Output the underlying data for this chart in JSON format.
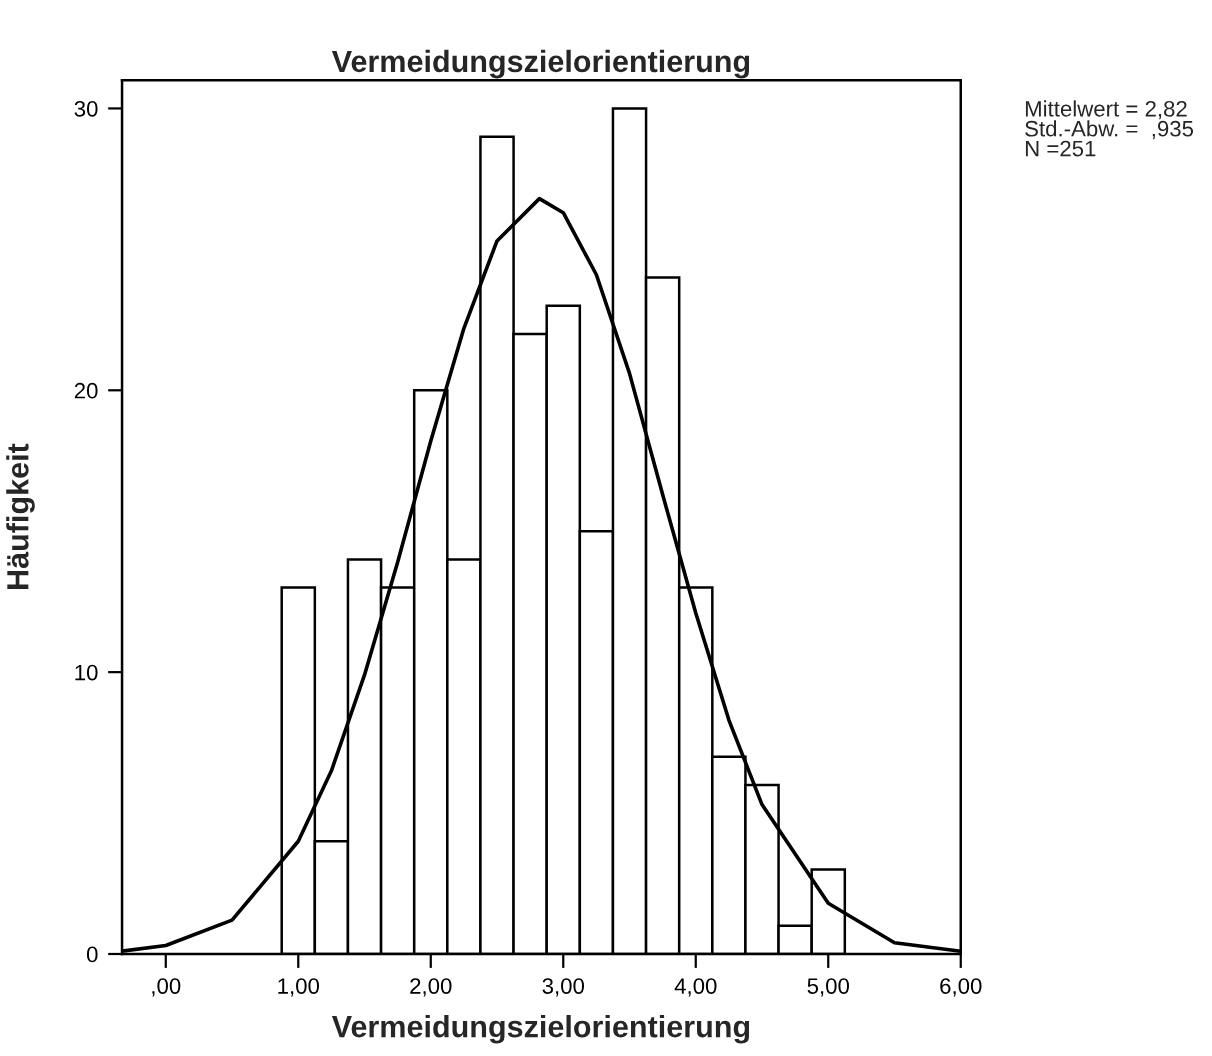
{
  "chart_data": {
    "type": "histogram",
    "title": "Vermeidungszielorientierung",
    "xlabel": "Vermeidungszielorientierung",
    "ylabel": "Häufigkeit",
    "bins": [
      0.875,
      1.125,
      1.375,
      1.625,
      1.875,
      2.125,
      2.375,
      2.625,
      2.875,
      3.125,
      3.375,
      3.625,
      3.875,
      4.125,
      4.375,
      4.625,
      4.875,
      5.125
    ],
    "values": [
      13,
      4,
      14,
      13,
      20,
      14,
      29,
      22,
      23,
      15,
      30,
      24,
      13,
      7,
      6,
      1,
      3
    ],
    "color": "#ffffff",
    "series": [
      {
        "type": "line",
        "color": "#000000",
        "x": [
          -0.33,
          0,
          0.5,
          1.0,
          1.25,
          1.5,
          1.75,
          2.0,
          2.25,
          2.5,
          2.82,
          3.0,
          3.25,
          3.5,
          3.75,
          4.0,
          4.25,
          4.5,
          5.0,
          5.5,
          6.0
        ],
        "values": [
          0.1,
          0.3,
          1.2,
          4.0,
          6.5,
          9.9,
          13.9,
          18.2,
          22.2,
          25.3,
          26.8,
          26.3,
          24.1,
          20.6,
          16.3,
          12.1,
          8.3,
          5.3,
          1.8,
          0.4,
          0.1
        ]
      }
    ],
    "xlim": [
      -0.33,
      6.0
    ],
    "ylim": [
      0,
      31
    ],
    "xticks": [
      {
        "value": 0,
        "label": ",00"
      },
      {
        "value": 1,
        "label": "1,00"
      },
      {
        "value": 2,
        "label": "2,00"
      },
      {
        "value": 3,
        "label": "3,00"
      },
      {
        "value": 4,
        "label": "4,00"
      },
      {
        "value": 5,
        "label": "5,00"
      },
      {
        "value": 6,
        "label": "6,00"
      }
    ],
    "yticks": [
      0,
      10,
      20,
      30
    ],
    "annotations": [
      "Mittelwert = 2,82\nStd.-Abw. =  ,935\nN =251"
    ],
    "grid": false,
    "legend": false
  }
}
